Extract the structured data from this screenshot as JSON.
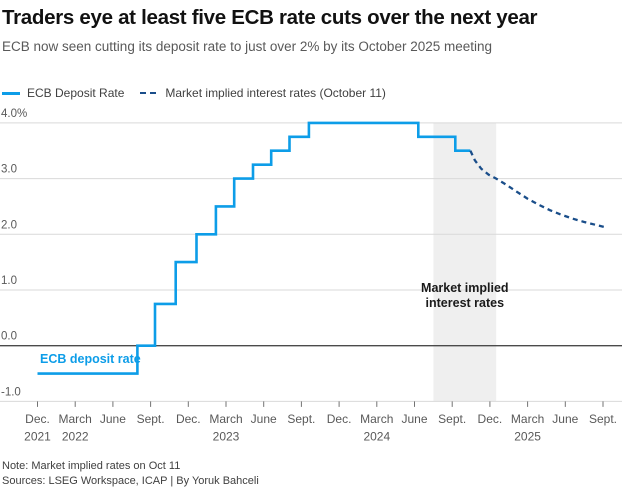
{
  "header": {
    "title": "Traders eye at least five ECB rate cuts over the next year",
    "subtitle": "ECB now seen cutting its deposit rate to just over 2% by its October 2025 meeting"
  },
  "legend": [
    {
      "label": "ECB Deposit Rate",
      "style": "solid",
      "color": "#0d9de8"
    },
    {
      "label": "Market implied interest rates (October 11)",
      "style": "dashed",
      "color": "#1a4e8a"
    }
  ],
  "footer": {
    "note": "Note: Market implied rates on Oct 11",
    "sources": "Sources: LSEG Workspace, ICAP | By Yoruk Bahceli"
  },
  "colors": {
    "accent_blue": "#0d9de8",
    "navy": "#1a4e8a",
    "gridline": "#d9d9d9",
    "zero_line": "#4a4a4a",
    "band": "#efefef",
    "tick": "#737373",
    "axis_text": "#595959",
    "annotation_dark": "#1a1a1a"
  },
  "chart_data": {
    "type": "line",
    "title": "Traders eye at least five ECB rate cuts over the next year",
    "xlabel": "",
    "ylabel": "",
    "x_unit": "months since Dec 2021",
    "ylim": [
      -1.35,
      4.3
    ],
    "grid": true,
    "legend_position": "top-left",
    "y_axis": {
      "ticks": [
        {
          "value": 4,
          "label": "4.0%"
        },
        {
          "value": 3,
          "label": "3.0"
        },
        {
          "value": 2,
          "label": "2.0"
        },
        {
          "value": 1,
          "label": "1.0"
        },
        {
          "value": 0,
          "label": "0.0",
          "emphasis": true
        },
        {
          "value": -1,
          "label": "-1.0"
        }
      ]
    },
    "x_axis": {
      "ticks": [
        {
          "m": 0,
          "label": "Dec.",
          "year": "2021"
        },
        {
          "m": 3,
          "label": "March",
          "year": "2022"
        },
        {
          "m": 6,
          "label": "June"
        },
        {
          "m": 9,
          "label": "Sept."
        },
        {
          "m": 12,
          "label": "Dec."
        },
        {
          "m": 15,
          "label": "March",
          "year": "2023"
        },
        {
          "m": 18,
          "label": "June"
        },
        {
          "m": 21,
          "label": "Sept."
        },
        {
          "m": 24,
          "label": "Dec."
        },
        {
          "m": 27,
          "label": "March",
          "year": "2024"
        },
        {
          "m": 30,
          "label": "June"
        },
        {
          "m": 33,
          "label": "Sept."
        },
        {
          "m": 36,
          "label": "Dec."
        },
        {
          "m": 39,
          "label": "March",
          "year": "2025"
        },
        {
          "m": 42,
          "label": "June"
        },
        {
          "m": 45,
          "label": "Sept."
        }
      ]
    },
    "series": [
      {
        "name": "ECB Deposit Rate",
        "type": "step",
        "line": "solid",
        "color": "#0d9de8",
        "points": [
          [
            0,
            -0.5
          ],
          [
            7.95,
            0.0
          ],
          [
            9.35,
            0.75
          ],
          [
            11.0,
            1.5
          ],
          [
            12.65,
            2.0
          ],
          [
            14.2,
            2.5
          ],
          [
            15.65,
            3.0
          ],
          [
            17.15,
            3.25
          ],
          [
            18.6,
            3.5
          ],
          [
            20.05,
            3.75
          ],
          [
            21.6,
            4.0
          ],
          [
            30.3,
            3.75
          ],
          [
            33.25,
            3.5
          ],
          [
            34.45,
            3.5
          ]
        ]
      },
      {
        "name": "Market implied interest rates (October 11)",
        "type": "line",
        "line": "dashed",
        "color": "#1a4e8a",
        "points": [
          [
            34.45,
            3.5
          ],
          [
            34.8,
            3.33
          ],
          [
            35.3,
            3.18
          ],
          [
            35.9,
            3.07
          ],
          [
            36.5,
            3.0
          ],
          [
            37.3,
            2.89
          ],
          [
            38.1,
            2.77
          ],
          [
            39.0,
            2.64
          ],
          [
            39.9,
            2.53
          ],
          [
            40.8,
            2.43
          ],
          [
            41.7,
            2.35
          ],
          [
            42.6,
            2.28
          ],
          [
            43.5,
            2.22
          ],
          [
            44.4,
            2.17
          ],
          [
            45.3,
            2.12
          ]
        ]
      }
    ],
    "highlight_band": {
      "x_months": [
        31.5,
        36.5
      ],
      "color": "#efefef"
    },
    "annotations": [
      {
        "text_lines": [
          "Market implied",
          "interest rates"
        ],
        "x_month": 34.0,
        "y_value": 0.96,
        "align": "middle",
        "color": "#1a1a1a"
      },
      {
        "text_lines": [
          "ECB deposit rate"
        ],
        "x_month": 0.2,
        "y_value": -0.31,
        "align": "start",
        "color": "#0d9de8"
      }
    ]
  }
}
